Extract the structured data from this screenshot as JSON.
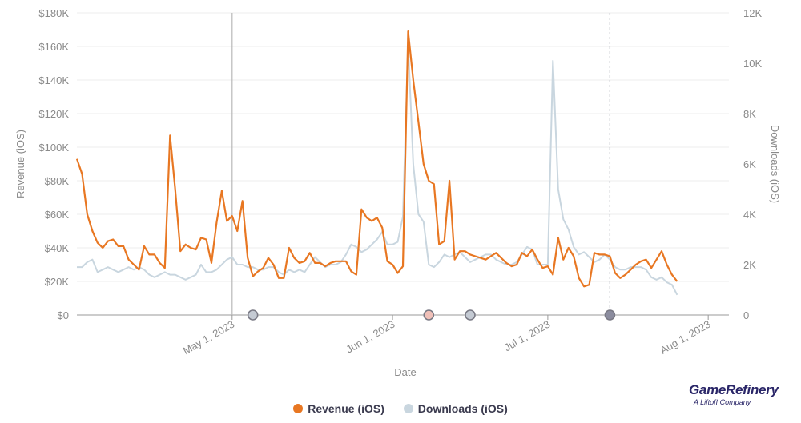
{
  "chart_data": {
    "type": "line",
    "xlabel": "Date",
    "ylabel_left": "Revenue (iOS)",
    "ylabel_right": "Downloads (iOS)",
    "y_left_ticks": [
      "$0",
      "$20K",
      "$40K",
      "$60K",
      "$80K",
      "$100K",
      "$120K",
      "$140K",
      "$160K",
      "$180K"
    ],
    "y_left_range": [
      0,
      180000
    ],
    "y_right_ticks": [
      "0",
      "2K",
      "4K",
      "6K",
      "8K",
      "10K",
      "12K"
    ],
    "y_right_range": [
      0,
      12000
    ],
    "x_ticks": [
      {
        "label": "May 1, 2023",
        "date": "2023-05-01"
      },
      {
        "label": "Jun 1, 2023",
        "date": "2023-06-01"
      },
      {
        "label": "Jul 1, 2023",
        "date": "2023-07-01"
      },
      {
        "label": "Aug 1, 2023",
        "date": "2023-08-01"
      }
    ],
    "x_range": [
      "2023-04-01",
      "2023-08-05"
    ],
    "grid": true,
    "legend_position": "bottom",
    "series": [
      {
        "name": "Revenue (iOS)",
        "axis": "left",
        "color": "#e87722",
        "start_date": "2023-04-01",
        "values": [
          93000,
          84000,
          60000,
          50000,
          43000,
          40000,
          44000,
          45000,
          41000,
          41000,
          33000,
          30000,
          27000,
          41000,
          36000,
          36000,
          31000,
          28000,
          107000,
          75000,
          38000,
          42000,
          40000,
          39000,
          46000,
          45000,
          31000,
          55000,
          74000,
          56000,
          59000,
          50000,
          68000,
          34000,
          23000,
          26000,
          28000,
          34000,
          30000,
          22000,
          22000,
          40000,
          34000,
          31000,
          32000,
          37000,
          31000,
          31000,
          29000,
          31000,
          32000,
          32000,
          32000,
          26000,
          24000,
          63000,
          58000,
          56000,
          58000,
          52000,
          32000,
          30000,
          25000,
          29000,
          169000,
          140000,
          115000,
          90000,
          80000,
          78000,
          42000,
          44000,
          80000,
          33000,
          38000,
          38000,
          36000,
          35000,
          34000,
          33000,
          35000,
          37000,
          34000,
          31000,
          29000,
          30000,
          37000,
          35000,
          39000,
          33000,
          28000,
          29000,
          24000,
          46000,
          33000,
          40000,
          35000,
          22000,
          17000,
          18000,
          37000,
          36000,
          36000,
          35000,
          25000,
          22000,
          24000,
          27000,
          30000,
          32000,
          33000,
          28000,
          33000,
          38000,
          30000,
          24000,
          20000
        ]
      },
      {
        "name": "Downloads (iOS)",
        "axis": "right",
        "color": "#c9d6df",
        "start_date": "2023-04-01",
        "values": [
          1900,
          1900,
          2100,
          2200,
          1700,
          1800,
          1900,
          1800,
          1700,
          1800,
          1900,
          1800,
          1900,
          1800,
          1600,
          1500,
          1600,
          1700,
          1600,
          1600,
          1500,
          1400,
          1500,
          1600,
          2000,
          1700,
          1700,
          1800,
          2000,
          2200,
          2300,
          2000,
          2000,
          1900,
          1900,
          1800,
          1800,
          1900,
          1900,
          1700,
          1600,
          1800,
          1700,
          1800,
          1700,
          2000,
          2300,
          2100,
          1900,
          2000,
          2000,
          2100,
          2400,
          2800,
          2700,
          2500,
          2600,
          2800,
          3000,
          3300,
          2800,
          2800,
          2900,
          3900,
          10800,
          6000,
          4000,
          3700,
          2000,
          1900,
          2100,
          2400,
          2300,
          2400,
          2500,
          2300,
          2100,
          2200,
          2300,
          2400,
          2400,
          2200,
          2100,
          2000,
          2000,
          2100,
          2400,
          2700,
          2600,
          2000,
          2000,
          2000,
          10100,
          5000,
          3800,
          3400,
          2700,
          2400,
          2500,
          2300,
          2100,
          2200,
          2400,
          2200,
          1900,
          1800,
          1800,
          1900,
          1900,
          1900,
          1800,
          1500,
          1400,
          1500,
          1300,
          1200,
          800
        ]
      }
    ],
    "markers": [
      {
        "date": "2023-05-05",
        "color": "#c4cad3"
      },
      {
        "date": "2023-06-08",
        "color": "#f0c0b8"
      },
      {
        "date": "2023-06-16",
        "color": "#c4cad3"
      },
      {
        "date": "2023-07-13",
        "color": "#8b8c9e"
      }
    ],
    "reference_lines": [
      {
        "date": "2023-05-01",
        "style": "solid"
      },
      {
        "date": "2023-07-13",
        "style": "dashed"
      }
    ]
  },
  "legend": {
    "revenue_label": "Revenue (iOS)",
    "downloads_label": "Downloads (iOS)"
  },
  "brand": {
    "name": "GameRefinery",
    "sub": "A Liftoff Company"
  }
}
